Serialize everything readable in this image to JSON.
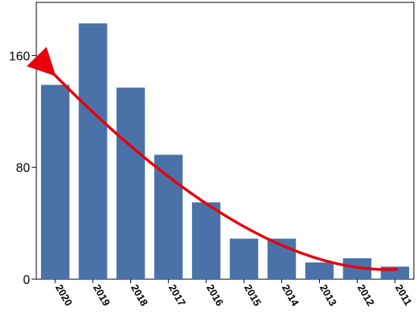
{
  "chart_data": {
    "type": "bar",
    "categories": [
      "2020",
      "2019",
      "2018",
      "2017",
      "2016",
      "2015",
      "2014",
      "2013",
      "2012",
      "2011"
    ],
    "values": [
      139,
      183,
      137,
      89,
      55,
      29,
      29,
      12,
      15,
      9
    ],
    "title": "",
    "xlabel": "",
    "ylabel": "",
    "ylim": [
      0,
      198
    ],
    "yticks": [
      0,
      80,
      160
    ],
    "grid": false,
    "legend": "none",
    "bar_color": "#4a72a8",
    "trend_arrow": {
      "color": "#e8000b",
      "from_category": "2011",
      "to_category": "2020",
      "from_value": 7,
      "to_value": 148
    }
  }
}
